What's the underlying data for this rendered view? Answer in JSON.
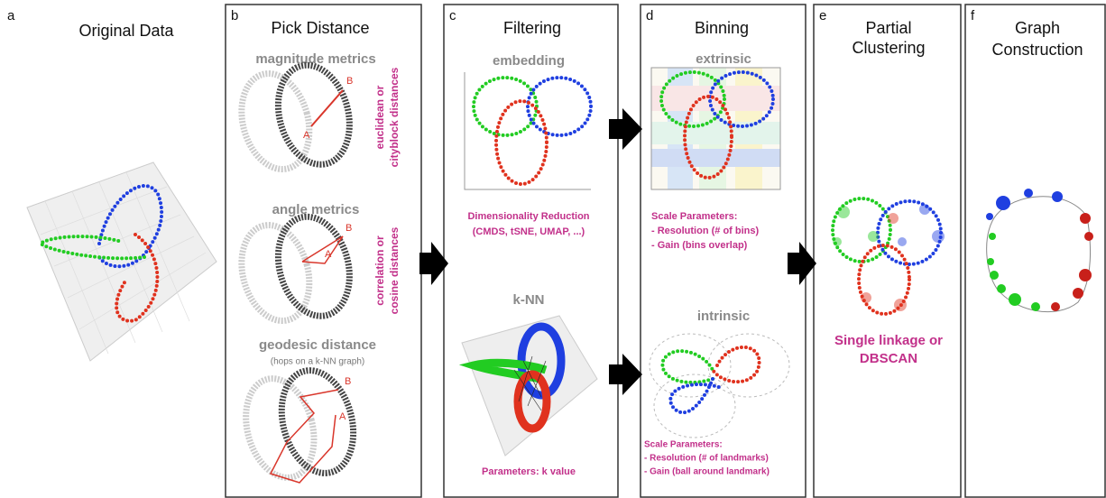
{
  "panels": [
    {
      "letter": "a",
      "title": [
        "Original Data"
      ]
    },
    {
      "letter": "b",
      "title": [
        "Pick Distance"
      ],
      "sections": [
        {
          "heading": "magnitude metrics",
          "labels": [
            "A",
            "B"
          ],
          "note": [
            "euclidean or",
            "cityblock distances"
          ]
        },
        {
          "heading": "angle metrics",
          "labels": [
            "A",
            "B"
          ],
          "note": [
            "correlation or",
            "cosine distances"
          ]
        },
        {
          "heading": "geodesic distance",
          "subheading": "(hops on a k-NN graph)",
          "labels": [
            "A",
            "B"
          ]
        }
      ]
    },
    {
      "letter": "c",
      "title": [
        "Filtering"
      ],
      "sections": [
        {
          "heading": "embedding",
          "note": [
            "Dimensionality Reduction",
            "(CMDS, tSNE, UMAP, ...)"
          ]
        },
        {
          "heading": "k-NN",
          "note": [
            "Parameters: k value"
          ]
        }
      ]
    },
    {
      "letter": "d",
      "title": [
        "Binning"
      ],
      "sections": [
        {
          "heading": "extrinsic",
          "note": [
            "Scale Parameters:",
            "- Resolution (# of bins)",
            "- Gain (bins overlap)"
          ]
        },
        {
          "heading": "intrinsic",
          "note": [
            "Scale Parameters:",
            "- Resolution (# of landmarks)",
            "- Gain (ball around landmark)"
          ]
        }
      ]
    },
    {
      "letter": "e",
      "title": [
        "Partial",
        "Clustering"
      ],
      "note": [
        "Single linkage or",
        "DBSCAN"
      ]
    },
    {
      "letter": "f",
      "title": [
        "Graph",
        "Construction"
      ]
    }
  ]
}
